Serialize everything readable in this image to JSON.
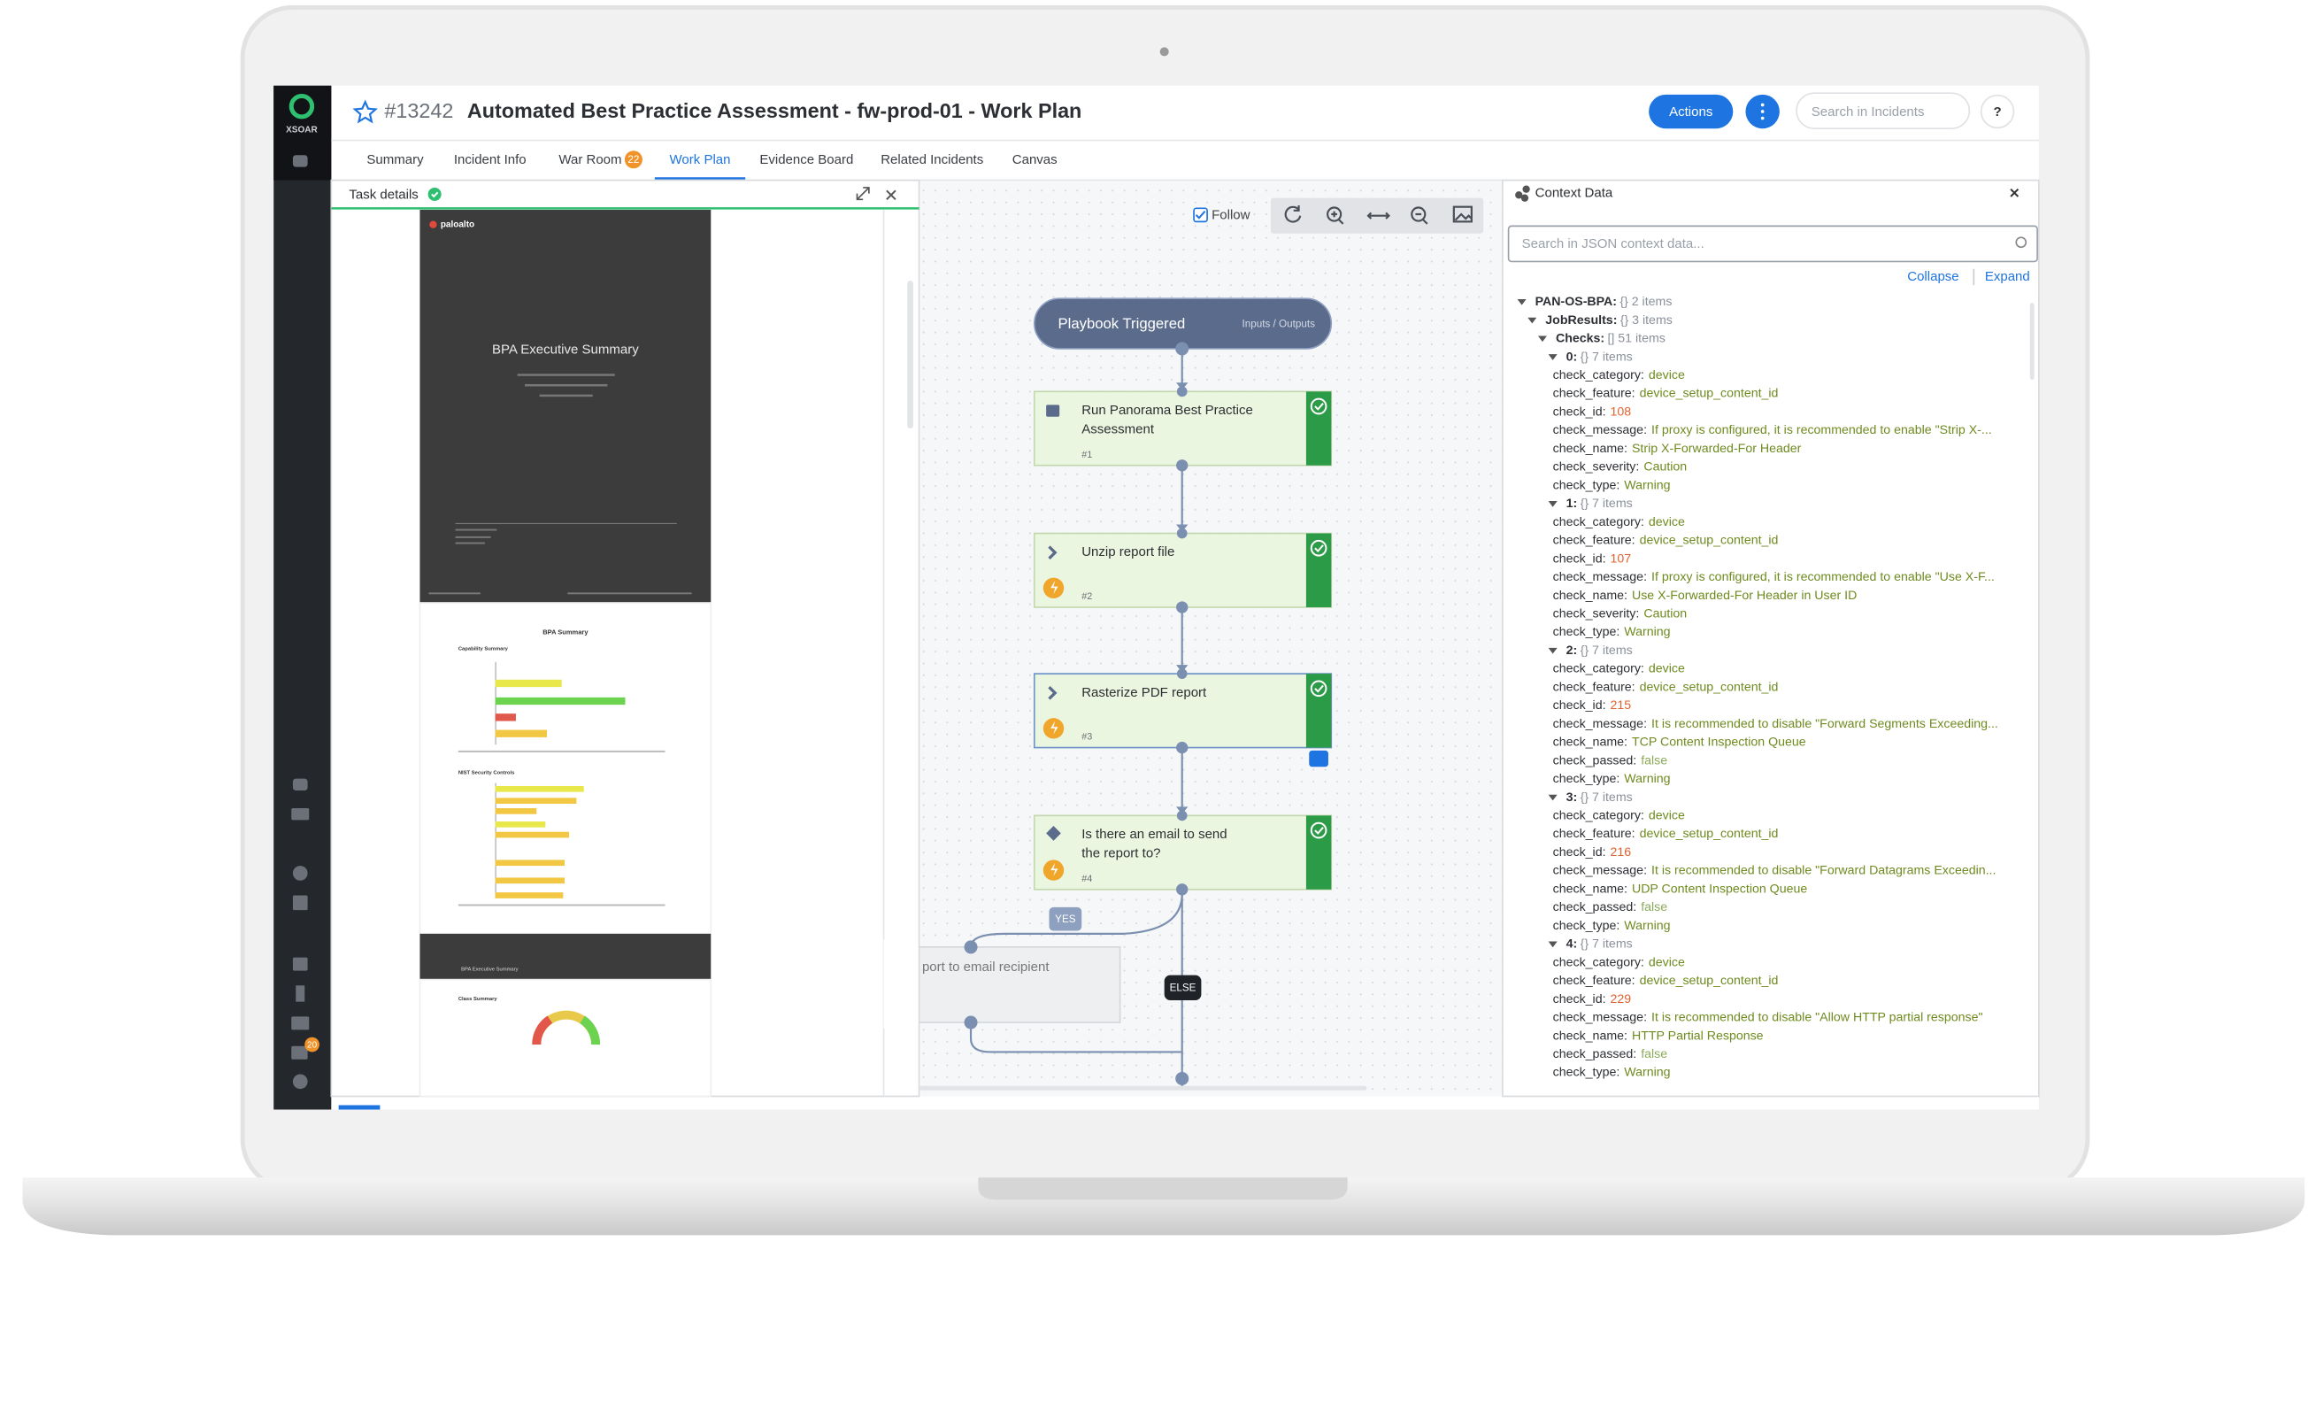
{
  "sidebar": {
    "brand": "XSOAR",
    "badge": "20"
  },
  "header": {
    "incident_id": "#13242",
    "title": "Automated Best Practice Assessment - fw-prod-01 - Work Plan",
    "actions_button": "Actions",
    "search_placeholder": "Search in Incidents",
    "help": "?"
  },
  "tabs": [
    {
      "label": "Summary"
    },
    {
      "label": "Incident Info"
    },
    {
      "label": "War Room",
      "badge": "22"
    },
    {
      "label": "Work Plan",
      "active": true
    },
    {
      "label": "Evidence Board"
    },
    {
      "label": "Related Incidents"
    },
    {
      "label": "Canvas"
    }
  ],
  "task_details": {
    "title": "Task details",
    "document": {
      "logo": "paloalto",
      "cover_title": "BPA Executive Summary",
      "summary_title": "BPA Summary",
      "section_1": "Capability Summary",
      "section_2": "NIST Security Controls",
      "footer": "BPA Executive Summary",
      "section_3": "Class Summary"
    }
  },
  "work_plan": {
    "follow": "Follow",
    "trigger": {
      "title": "Playbook Triggered",
      "link": "Inputs / Outputs"
    },
    "tasks": [
      {
        "title": "Run Panorama Best Practice Assessment",
        "number": "#1",
        "icon": "book",
        "automated": false
      },
      {
        "title": "Unzip report file",
        "number": "#2",
        "icon": "chevron",
        "automated": true
      },
      {
        "title": "Rasterize PDF report",
        "number": "#3",
        "icon": "chevron",
        "automated": true
      },
      {
        "title": "Is there an email to send the report to?",
        "number": "#4",
        "icon": "diamond",
        "automated": true
      }
    ],
    "yes_label": "YES",
    "else_label": "ELSE",
    "branch_task": "port to email recipient"
  },
  "context_data": {
    "title": "Context Data",
    "search_placeholder": "Search in JSON context data...",
    "collapse": "Collapse",
    "expand": "Expand",
    "tree": [
      {
        "key": "PAN-OS-BPA:",
        "summary": "{} 2 items",
        "children": [
          {
            "key": "JobResults:",
            "summary": "{} 3 items",
            "children": [
              {
                "key": "Checks:",
                "summary": "[] 51 items",
                "children": [
                  {
                    "key": "0:",
                    "summary": "{} 7 items",
                    "children": [
                      {
                        "key": "check_category:",
                        "value": "device"
                      },
                      {
                        "key": "check_feature:",
                        "value": "device_setup_content_id"
                      },
                      {
                        "key": "check_id:",
                        "value": "108"
                      },
                      {
                        "key": "check_message:",
                        "value": "If proxy is configured, it is recommended to enable \"Strip X-..."
                      },
                      {
                        "key": "check_name:",
                        "value": "Strip X-Forwarded-For Header"
                      },
                      {
                        "key": "check_severity:",
                        "value": "Caution"
                      },
                      {
                        "key": "check_type:",
                        "value": "Warning"
                      }
                    ]
                  },
                  {
                    "key": "1:",
                    "summary": "{} 7 items",
                    "children": [
                      {
                        "key": "check_category:",
                        "value": "device"
                      },
                      {
                        "key": "check_feature:",
                        "value": "device_setup_content_id"
                      },
                      {
                        "key": "check_id:",
                        "value": "107"
                      },
                      {
                        "key": "check_message:",
                        "value": "If proxy is configured, it is recommended to enable \"Use X-F..."
                      },
                      {
                        "key": "check_name:",
                        "value": "Use X-Forwarded-For Header in User ID"
                      },
                      {
                        "key": "check_severity:",
                        "value": "Caution"
                      },
                      {
                        "key": "check_type:",
                        "value": "Warning"
                      }
                    ]
                  },
                  {
                    "key": "2:",
                    "summary": "{} 7 items",
                    "children": [
                      {
                        "key": "check_category:",
                        "value": "device"
                      },
                      {
                        "key": "check_feature:",
                        "value": "device_setup_content_id"
                      },
                      {
                        "key": "check_id:",
                        "value": "215"
                      },
                      {
                        "key": "check_message:",
                        "value": "It is recommended to disable \"Forward Segments Exceeding..."
                      },
                      {
                        "key": "check_name:",
                        "value": "TCP Content Inspection Queue"
                      },
                      {
                        "key": "check_passed:",
                        "value": "false"
                      },
                      {
                        "key": "check_type:",
                        "value": "Warning"
                      }
                    ]
                  },
                  {
                    "key": "3:",
                    "summary": "{} 7 items",
                    "children": [
                      {
                        "key": "check_category:",
                        "value": "device"
                      },
                      {
                        "key": "check_feature:",
                        "value": "device_setup_content_id"
                      },
                      {
                        "key": "check_id:",
                        "value": "216"
                      },
                      {
                        "key": "check_message:",
                        "value": "It is recommended to disable \"Forward Datagrams Exceedin..."
                      },
                      {
                        "key": "check_name:",
                        "value": "UDP Content Inspection Queue"
                      },
                      {
                        "key": "check_passed:",
                        "value": "false"
                      },
                      {
                        "key": "check_type:",
                        "value": "Warning"
                      }
                    ]
                  },
                  {
                    "key": "4:",
                    "summary": "{} 7 items",
                    "children": [
                      {
                        "key": "check_category:",
                        "value": "device"
                      },
                      {
                        "key": "check_feature:",
                        "value": "device_setup_content_id"
                      },
                      {
                        "key": "check_id:",
                        "value": "229"
                      },
                      {
                        "key": "check_message:",
                        "value": "It is recommended to disable \"Allow HTTP partial response\""
                      },
                      {
                        "key": "check_name:",
                        "value": "HTTP Partial Response"
                      },
                      {
                        "key": "check_passed:",
                        "value": "false"
                      },
                      {
                        "key": "check_type:",
                        "value": "Warning"
                      }
                    ]
                  }
                ]
              }
            ]
          }
        ]
      }
    ]
  }
}
